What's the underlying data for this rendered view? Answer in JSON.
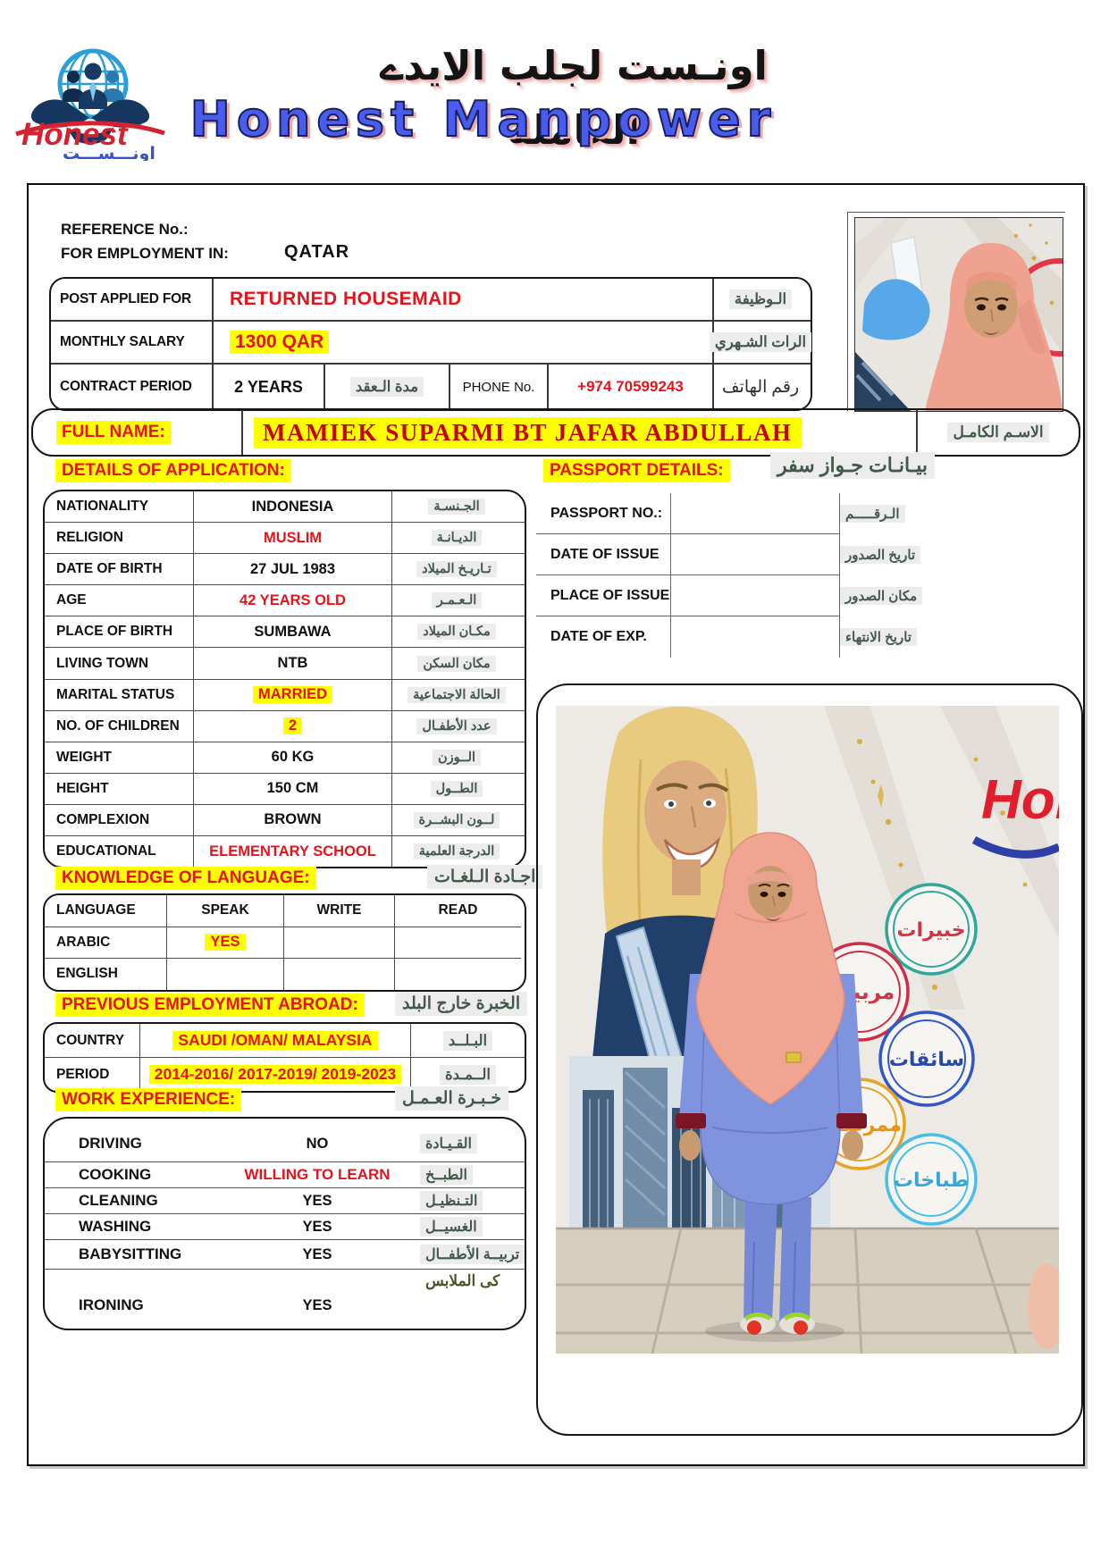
{
  "header": {
    "arabic_title": "اونـست لجلب الايدے العاملة",
    "company_name": "Honest Manpower",
    "logo_text": "Honest",
    "logo_arabic": "اونـــســـت"
  },
  "reference": {
    "ref_label": "REFERENCE No.:",
    "emp_label": "FOR EMPLOYMENT IN:",
    "emp_value": "QATAR"
  },
  "top_table": {
    "post_label": "POST APPLIED FOR",
    "post_value": "RETURNED HOUSEMAID",
    "post_ar": "الـوظيفة",
    "salary_label": "MONTHLY SALARY",
    "salary_value": "1300 QAR",
    "salary_ar": "الرات الشـهري",
    "contract_label": "CONTRACT PERIOD",
    "contract_value": "2 YEARS",
    "contract_ar": "مدة الـعقد",
    "phone_label": "PHONE No.",
    "phone_value": "+974 70599243",
    "phone_ar": "رقم الهاتف"
  },
  "full_name": {
    "label": "FULL NAME:",
    "value": "MAMIEK SUPARMI BT JAFAR ABDULLAH",
    "ar": "الاسـم الكامـل"
  },
  "details": {
    "title": "DETAILS OF APPLICATION:",
    "rows": [
      {
        "label": "NATIONALITY",
        "value": "INDONESIA",
        "ar": "الجـنسـة",
        "style": "plain"
      },
      {
        "label": "RELIGION",
        "value": "MUSLIM",
        "ar": "الديـانـة",
        "style": "red"
      },
      {
        "label": "DATE OF BIRTH",
        "value": "27 JUL 1983",
        "ar": "تـاريـخ الميلاد",
        "style": "plain"
      },
      {
        "label": "AGE",
        "value": "42 YEARS OLD",
        "ar": "الـعـمـر",
        "style": "red"
      },
      {
        "label": "PLACE OF BIRTH",
        "value": "SUMBAWA",
        "ar": "مكـان الميلاد",
        "style": "plain"
      },
      {
        "label": "LIVING TOWN",
        "value": "NTB",
        "ar": "مكان السكن",
        "style": "plain"
      },
      {
        "label": "MARITAL STATUS",
        "value": "MARRIED",
        "ar": "الحالة الاجتماعية",
        "style": "red-hl"
      },
      {
        "label": "NO. OF CHILDREN",
        "value": "2",
        "ar": "عدد الأطفـال",
        "style": "red-hl"
      },
      {
        "label": "WEIGHT",
        "value": "60 KG",
        "ar": "الــوزن",
        "style": "plain"
      },
      {
        "label": "HEIGHT",
        "value": "150 CM",
        "ar": "الطــول",
        "style": "plain"
      },
      {
        "label": "COMPLEXION",
        "value": "BROWN",
        "ar": "لــون البشــرة",
        "style": "plain"
      },
      {
        "label": "EDUCATIONAL",
        "value": "ELEMENTARY SCHOOL",
        "ar": "الدرجة العلمية",
        "style": "red"
      }
    ]
  },
  "passport": {
    "title": "PASSPORT DETAILS:",
    "title_ar": "بيـانـات جـواز سفر",
    "rows": [
      {
        "label": "PASSPORT NO.:",
        "value": "",
        "ar": "الـرقـــــم"
      },
      {
        "label": "DATE OF ISSUE",
        "value": "",
        "ar": "تاريخ الصدور"
      },
      {
        "label": "PLACE OF ISSUE",
        "value": "",
        "ar": "مكان الصدور"
      },
      {
        "label": "DATE OF EXP.",
        "value": "",
        "ar": "تاريخ الانتهاء"
      }
    ]
  },
  "language": {
    "title": "KNOWLEDGE OF LANGUAGE:",
    "title_ar": "اجـادة الـلغـات",
    "headers": [
      "LANGUAGE",
      "SPEAK",
      "WRITE",
      "READ"
    ],
    "rows": [
      {
        "cells": [
          "ARABIC",
          "YES",
          "",
          ""
        ]
      },
      {
        "cells": [
          "ENGLISH",
          "",
          "",
          ""
        ]
      }
    ]
  },
  "employment": {
    "title": "PREVIOUS EMPLOYMENT ABROAD:",
    "title_ar": "الخبرة خارج البلد",
    "rows": [
      {
        "label": "COUNTRY",
        "value": "SAUDI /OMAN/ MALAYSIA",
        "ar": "البـلــد"
      },
      {
        "label": "PERIOD",
        "value": "2014-2016/ 2017-2019/ 2019-2023",
        "ar": "الــمـدة"
      }
    ]
  },
  "work": {
    "title": "WORK EXPERIENCE:",
    "title_ar": "خـبـرة العـمـل",
    "rows": [
      {
        "label": "DRIVING",
        "value": "NO",
        "ar": "القـيـادة",
        "style": "plain"
      },
      {
        "label": "COOKING",
        "value": "WILLING TO LEARN",
        "ar": "الطبــخ",
        "style": "red"
      },
      {
        "label": "CLEANING",
        "value": "YES",
        "ar": "التـنظيـل",
        "style": "plain"
      },
      {
        "label": "WASHING",
        "value": "YES",
        "ar": "الغسيــل",
        "style": "plain"
      },
      {
        "label": "BABYSITTING",
        "value": "YES",
        "ar": "تربيــة الأطفــال",
        "style": "plain"
      },
      {
        "label": "IRONING",
        "value": "YES",
        "ar": "كى الملابس",
        "style": "plain"
      }
    ]
  },
  "photo": {
    "logo_fragment": "Hon",
    "circle_labels": [
      "خبيرات",
      "مربيات",
      "سائقات",
      "ممرضات",
      "طباخات"
    ]
  },
  "colors": {
    "highlight": "#ffff00",
    "red": "#e8121a",
    "name_red": "#c40404",
    "arabic_green": "#42584a",
    "title_blue": "#4a5ced"
  }
}
